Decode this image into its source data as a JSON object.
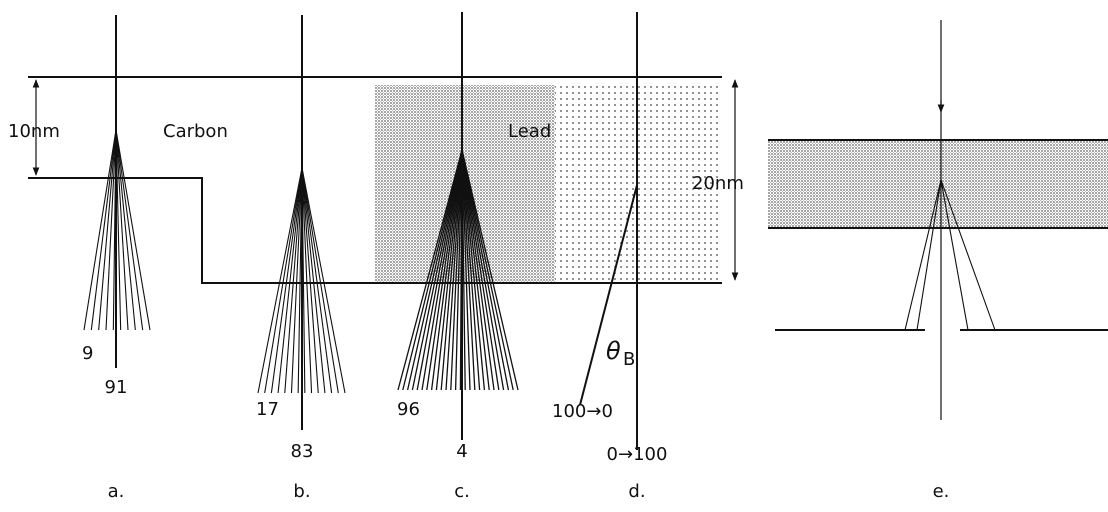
{
  "labels": {
    "thickness_carbon": "10nm",
    "carbon": "Carbon",
    "lead": "Lead",
    "thickness_lead": "20nm",
    "theta": "θ",
    "theta_subscript": "B"
  },
  "panels": [
    {
      "label": "a.",
      "scattered": "9",
      "transmitted": "91"
    },
    {
      "label": "b.",
      "scattered": "17",
      "transmitted": "83"
    },
    {
      "label": "c.",
      "scattered": "96",
      "transmitted": "4"
    },
    {
      "label": "d.",
      "scattered": "100→0",
      "transmitted": "0→100"
    },
    {
      "label": "e."
    }
  ]
}
